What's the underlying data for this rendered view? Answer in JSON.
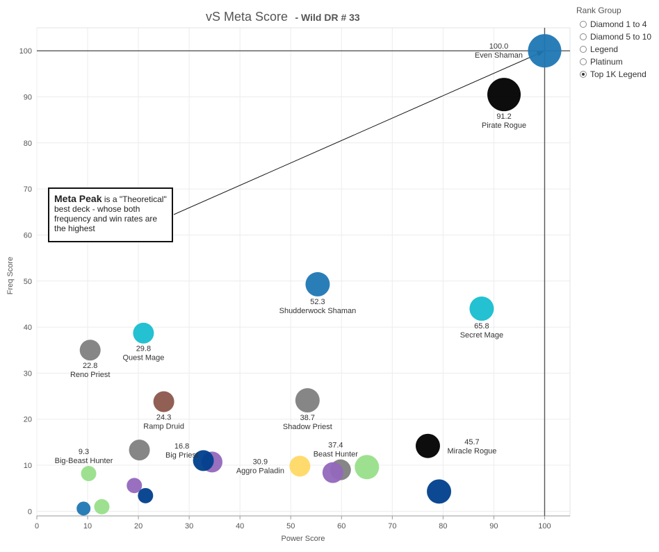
{
  "title": "vS Meta Score",
  "subtitle": "- Wild DR # 33",
  "legend": {
    "title": "Rank Group",
    "items": [
      {
        "label": "Diamond 1 to 4",
        "selected": false
      },
      {
        "label": "Diamond 5 to 10",
        "selected": false
      },
      {
        "label": "Legend",
        "selected": false
      },
      {
        "label": "Platinum",
        "selected": false
      },
      {
        "label": "Top 1K Legend",
        "selected": true
      }
    ]
  },
  "callout": {
    "bold": "Meta Peak",
    "text": " is a \"Theoretical\" best deck - whose both frequency and win rates are the highest"
  },
  "chart_data": {
    "type": "scatter",
    "xlabel": "Power Score",
    "ylabel": "Freq Score",
    "xlim": [
      0,
      105
    ],
    "ylim": [
      -1,
      105
    ],
    "xticks": [
      0,
      10,
      20,
      30,
      40,
      50,
      60,
      70,
      80,
      90,
      100
    ],
    "yticks": [
      0,
      10,
      20,
      30,
      40,
      50,
      60,
      70,
      80,
      90,
      100
    ],
    "grid": true,
    "reference_lines": {
      "x": 100,
      "y": 100
    },
    "points": [
      {
        "x": 100,
        "y": 100,
        "size": "xl",
        "color": "#1f77b4",
        "score": "100.0",
        "name": "Even Shaman",
        "label_pos": "left"
      },
      {
        "x": 92,
        "y": 90.5,
        "size": "xl",
        "color": "#000000",
        "score": "91.2",
        "name": "Pirate Rogue",
        "label_pos": "below"
      },
      {
        "x": 55.3,
        "y": 49.3,
        "size": "l",
        "color": "#1f77b4",
        "score": "52.3",
        "name": "Shudderwock Shaman",
        "label_pos": "below"
      },
      {
        "x": 87.6,
        "y": 44,
        "size": "l",
        "color": "#17becf",
        "score": "65.8",
        "name": "Secret Mage",
        "label_pos": "below"
      },
      {
        "x": 21,
        "y": 38.7,
        "size": "m",
        "color": "#17becf",
        "score": "29.8",
        "name": "Quest Mage",
        "label_pos": "below"
      },
      {
        "x": 10.5,
        "y": 35,
        "size": "m",
        "color": "#7f7f7f",
        "score": "22.8",
        "name": "Reno Priest",
        "label_pos": "below"
      },
      {
        "x": 25,
        "y": 23.8,
        "size": "m",
        "color": "#8c564b",
        "score": "24.3",
        "name": "Ramp Druid",
        "label_pos": "below"
      },
      {
        "x": 53.3,
        "y": 24.1,
        "size": "l",
        "color": "#7f7f7f",
        "score": "38.7",
        "name": "Shadow Priest",
        "label_pos": "below"
      },
      {
        "x": 77,
        "y": 14.2,
        "size": "l",
        "color": "#000000",
        "score": "45.7",
        "name": "Miracle Rogue",
        "label_pos": "right"
      },
      {
        "x": 20.2,
        "y": 13.3,
        "size": "m",
        "color": "#7f7f7f",
        "score": "16.8",
        "name": "Big Priest",
        "label_pos": "right"
      },
      {
        "x": 10.2,
        "y": 8.2,
        "size": "s",
        "color": "#98df8a",
        "score": "9.3",
        "name": "Big-Beast Hunter",
        "label_pos": "above"
      },
      {
        "x": 51.8,
        "y": 9.8,
        "size": "m",
        "color": "#ffd966",
        "score": "30.9",
        "name": "Aggro Paladin",
        "label_pos": "left"
      },
      {
        "x": 59.8,
        "y": 9,
        "size": "m",
        "color": "#7f7f7f",
        "score": "37.4",
        "name": "Beast Hunter",
        "label_pos": "above"
      },
      {
        "x": 65,
        "y": 9.6,
        "size": "l",
        "color": "#98df8a",
        "score": "",
        "name": "",
        "label_pos": "none"
      },
      {
        "x": 58.3,
        "y": 8.4,
        "size": "m",
        "color": "#9467bd",
        "score": "",
        "name": "",
        "label_pos": "none"
      },
      {
        "x": 34.5,
        "y": 10.7,
        "size": "m",
        "color": "#9467bd",
        "score": "",
        "name": "",
        "label_pos": "none"
      },
      {
        "x": 32.8,
        "y": 11,
        "size": "m",
        "color": "#003f8c",
        "score": "",
        "name": "",
        "label_pos": "none"
      },
      {
        "x": 79.2,
        "y": 4.3,
        "size": "l",
        "color": "#003f8c",
        "score": "",
        "name": "",
        "label_pos": "none"
      },
      {
        "x": 19.2,
        "y": 5.6,
        "size": "s",
        "color": "#9467bd",
        "score": "",
        "name": "",
        "label_pos": "none"
      },
      {
        "x": 21.4,
        "y": 3.4,
        "size": "s",
        "color": "#003f8c",
        "score": "",
        "name": "",
        "label_pos": "none"
      },
      {
        "x": 9.2,
        "y": 0.6,
        "size": "xs",
        "color": "#1f77b4",
        "score": "",
        "name": "",
        "label_pos": "none"
      },
      {
        "x": 12.8,
        "y": 1,
        "size": "s",
        "color": "#98df8a",
        "score": "",
        "name": "",
        "label_pos": "none"
      }
    ]
  }
}
